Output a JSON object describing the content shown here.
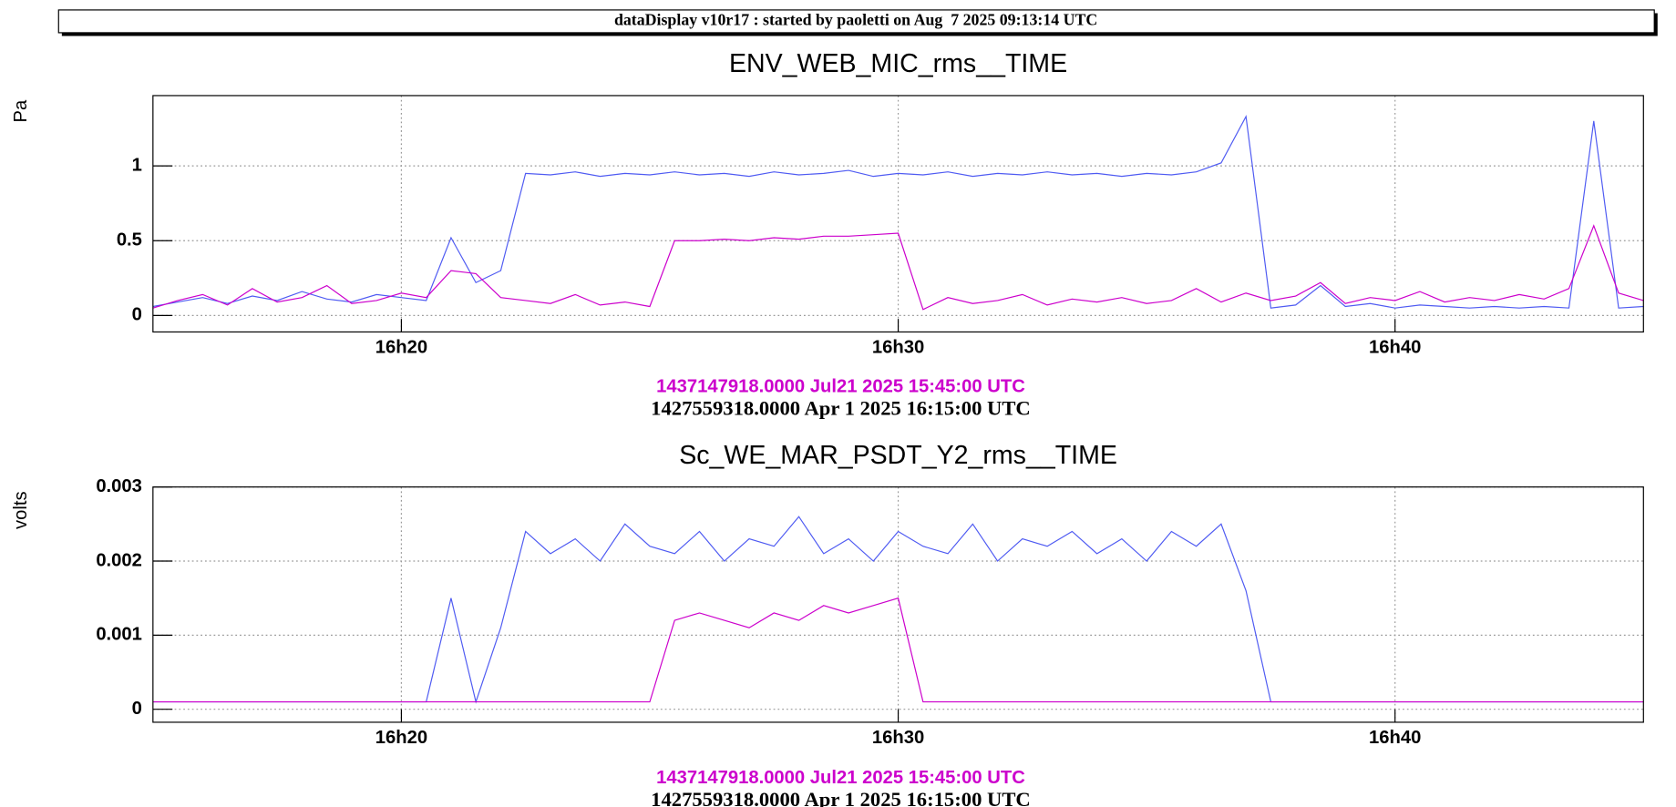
{
  "header": "dataDisplay v10r17 : started by paoletti on Aug  7 2025 09:13:14 UTC",
  "chart_data": [
    {
      "type": "line",
      "title": "ENV_WEB_MIC_rms__TIME",
      "ylabel": "Pa",
      "x": [
        15,
        15.5,
        16,
        16.5,
        17,
        17.5,
        18,
        18.5,
        19,
        19.5,
        20,
        20.5,
        21,
        21.5,
        22,
        22.5,
        23,
        23.5,
        24,
        24.5,
        25,
        25.5,
        26,
        26.5,
        27,
        27.5,
        28,
        28.5,
        29,
        29.5,
        30,
        30.5,
        31,
        31.5,
        32,
        32.5,
        33,
        33.5,
        34,
        34.5,
        35,
        35.5,
        36,
        36.5,
        37,
        37.5,
        38,
        38.5,
        39,
        39.5,
        40,
        40.5,
        41,
        41.5,
        42,
        42.5,
        43,
        43.5,
        44,
        44.5,
        45
      ],
      "xlim": [
        15,
        45
      ],
      "xticks": [
        {
          "value": 20,
          "label": "16h20"
        },
        {
          "value": 30,
          "label": "16h30"
        },
        {
          "value": 40,
          "label": "16h40"
        }
      ],
      "ylim": [
        -0.11,
        1.47
      ],
      "yticks": [
        0,
        0.5,
        1
      ],
      "grid": true,
      "series": [
        {
          "name": "1427559318.0000 Apr 1 2025 16:15:00 UTC",
          "color": "#4f5bf2",
          "name_color": "#000000",
          "values": [
            0.06,
            0.09,
            0.12,
            0.08,
            0.13,
            0.1,
            0.16,
            0.11,
            0.09,
            0.14,
            0.12,
            0.1,
            0.52,
            0.22,
            0.3,
            0.95,
            0.94,
            0.96,
            0.93,
            0.95,
            0.94,
            0.96,
            0.94,
            0.95,
            0.93,
            0.96,
            0.94,
            0.95,
            0.97,
            0.93,
            0.95,
            0.94,
            0.96,
            0.93,
            0.95,
            0.94,
            0.96,
            0.94,
            0.95,
            0.93,
            0.95,
            0.94,
            0.96,
            1.02,
            1.33,
            0.05,
            0.07,
            0.2,
            0.06,
            0.08,
            0.05,
            0.07,
            0.06,
            0.05,
            0.06,
            0.05,
            0.06,
            0.05,
            1.3,
            0.05,
            0.06
          ]
        },
        {
          "name": "1437147918.0000 Jul21 2025 15:45:00 UTC",
          "color": "#cc00cc",
          "name_color": "#cc00cc",
          "values": [
            0.05,
            0.1,
            0.14,
            0.07,
            0.18,
            0.09,
            0.12,
            0.2,
            0.08,
            0.1,
            0.15,
            0.12,
            0.3,
            0.28,
            0.12,
            0.1,
            0.08,
            0.14,
            0.07,
            0.09,
            0.06,
            0.5,
            0.5,
            0.51,
            0.5,
            0.52,
            0.51,
            0.53,
            0.53,
            0.54,
            0.55,
            0.04,
            0.12,
            0.08,
            0.1,
            0.14,
            0.07,
            0.11,
            0.09,
            0.12,
            0.08,
            0.1,
            0.18,
            0.09,
            0.15,
            0.1,
            0.13,
            0.22,
            0.08,
            0.12,
            0.1,
            0.16,
            0.09,
            0.12,
            0.1,
            0.14,
            0.11,
            0.18,
            0.6,
            0.15,
            0.1
          ]
        }
      ]
    },
    {
      "type": "line",
      "title": "Sc_WE_MAR_PSDT_Y2_rms__TIME",
      "ylabel": "volts",
      "x": [
        15,
        15.5,
        16,
        16.5,
        17,
        17.5,
        18,
        18.5,
        19,
        19.5,
        20,
        20.5,
        21,
        21.5,
        22,
        22.5,
        23,
        23.5,
        24,
        24.5,
        25,
        25.5,
        26,
        26.5,
        27,
        27.5,
        28,
        28.5,
        29,
        29.5,
        30,
        30.5,
        31,
        31.5,
        32,
        32.5,
        33,
        33.5,
        34,
        34.5,
        35,
        35.5,
        36,
        36.5,
        37,
        37.5,
        38,
        38.5,
        39,
        39.5,
        40,
        40.5,
        41,
        41.5,
        42,
        42.5,
        43,
        43.5,
        44,
        44.5,
        45
      ],
      "xlim": [
        15,
        45
      ],
      "xticks": [
        {
          "value": 20,
          "label": "16h20"
        },
        {
          "value": 30,
          "label": "16h30"
        },
        {
          "value": 40,
          "label": "16h40"
        }
      ],
      "ylim": [
        -0.000175,
        0.003
      ],
      "yticks": [
        0,
        0.001,
        0.002,
        0.003
      ],
      "grid": true,
      "series": [
        {
          "name": "1427559318.0000 Apr 1 2025 16:15:00 UTC",
          "color": "#4f5bf2",
          "name_color": "#000000",
          "values": [
            0.0001,
            0.0001,
            0.0001,
            0.0001,
            0.0001,
            0.0001,
            0.0001,
            0.0001,
            0.0001,
            0.0001,
            0.0001,
            0.0001,
            0.0015,
            0.0001,
            0.0011,
            0.0024,
            0.0021,
            0.0023,
            0.002,
            0.0025,
            0.0022,
            0.0021,
            0.0024,
            0.002,
            0.0023,
            0.0022,
            0.0026,
            0.0021,
            0.0023,
            0.002,
            0.0024,
            0.0022,
            0.0021,
            0.0025,
            0.002,
            0.0023,
            0.0022,
            0.0024,
            0.0021,
            0.0023,
            0.002,
            0.0024,
            0.0022,
            0.0025,
            0.0016,
            0.0001,
            0.0001,
            0.0001,
            0.0001,
            0.0001,
            0.0001,
            0.0001,
            0.0001,
            0.0001,
            0.0001,
            0.0001,
            0.0001,
            0.0001,
            0.0001,
            0.0001,
            0.0001
          ]
        },
        {
          "name": "1437147918.0000 Jul21 2025 15:45:00 UTC",
          "color": "#cc00cc",
          "name_color": "#cc00cc",
          "values": [
            0.0001,
            0.0001,
            0.0001,
            0.0001,
            0.0001,
            0.0001,
            0.0001,
            0.0001,
            0.0001,
            0.0001,
            0.0001,
            0.0001,
            0.0001,
            0.0001,
            0.0001,
            0.0001,
            0.0001,
            0.0001,
            0.0001,
            0.0001,
            0.0001,
            0.0012,
            0.0013,
            0.0012,
            0.0011,
            0.0013,
            0.0012,
            0.0014,
            0.0013,
            0.0014,
            0.0015,
            0.0001,
            0.0001,
            0.0001,
            0.0001,
            0.0001,
            0.0001,
            0.0001,
            0.0001,
            0.0001,
            0.0001,
            0.0001,
            0.0001,
            0.0001,
            0.0001,
            0.0001,
            0.0001,
            0.0001,
            0.0001,
            0.0001,
            0.0001,
            0.0001,
            0.0001,
            0.0001,
            0.0001,
            0.0001,
            0.0001,
            0.0001,
            0.0001,
            0.0001,
            0.0001
          ]
        }
      ]
    }
  ]
}
